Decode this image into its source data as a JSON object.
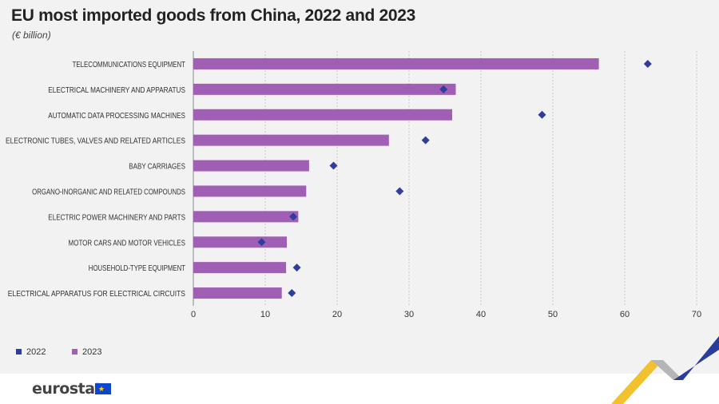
{
  "header": {
    "title": "EU most imported goods from China, 2022 and 2023",
    "subtitle": "(€ billion)"
  },
  "footer": {
    "logo_text": "eurostat"
  },
  "chart_data": {
    "type": "bar",
    "orientation": "horizontal",
    "categories": [
      "TELECOMMUNICATIONS EQUIPMENT",
      "ELECTRICAL MACHINERY AND APPARATUS",
      "AUTOMATIC DATA PROCESSING MACHINES",
      "ELECTRONIC TUBES, VALVES AND RELATED ARTICLES",
      "BABY CARRIAGES",
      "ORGANO-INORGANIC AND RELATED COMPOUNDS",
      "ELECTRIC POWER MACHINERY AND PARTS",
      "MOTOR CARS AND MOTOR VEHICLES",
      "HOUSEHOLD-TYPE EQUIPMENT",
      "ELECTRICAL APPARATUS FOR ELECTRICAL CIRCUITS"
    ],
    "series": [
      {
        "name": "2022",
        "mark": "diamond",
        "color": "#2e3e9c",
        "values": [
          63.2,
          34.8,
          48.5,
          32.3,
          19.5,
          28.7,
          13.9,
          9.5,
          14.4,
          13.7
        ]
      },
      {
        "name": "2023",
        "mark": "bar",
        "color": "#a05fb4",
        "values": [
          56.4,
          36.5,
          36.0,
          27.2,
          16.1,
          15.7,
          14.6,
          13.0,
          12.9,
          12.3
        ]
      }
    ],
    "xlim": [
      0,
      70
    ],
    "xticks": [
      "0",
      "10",
      "20",
      "30",
      "40",
      "50",
      "60",
      "70"
    ],
    "grid": "vertical dotted",
    "legend_position": "bottom-left"
  },
  "colors": {
    "background": "#f2f2f2",
    "bar_2023": "#a05fb4",
    "marker_2022": "#2e3e9c",
    "accent_yellow": "#f2c12e",
    "accent_blue": "#2a3c9c",
    "accent_grey": "#b5b5b5"
  }
}
